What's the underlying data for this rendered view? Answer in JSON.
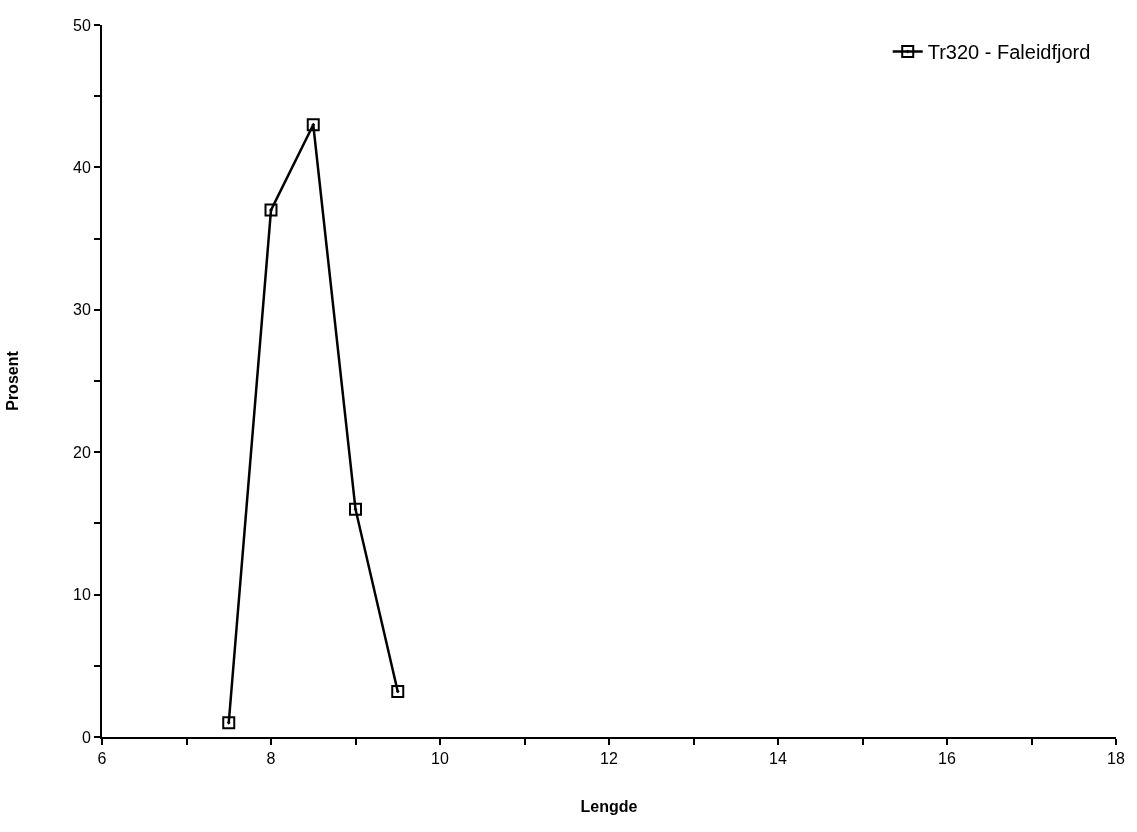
{
  "chart_data": {
    "type": "line",
    "xlabel": "Lengde",
    "ylabel": "Prosent",
    "x": [
      7.5,
      8,
      8.5,
      9,
      9.5
    ],
    "series": [
      {
        "name": "Tr320 - Faleidfjord",
        "color": "#000000",
        "values": [
          1,
          37,
          43,
          16,
          3.2
        ]
      }
    ],
    "xlim": [
      6,
      18
    ],
    "xticks": [
      6,
      {
        "value": 7,
        "label": null
      },
      8,
      {
        "value": 9,
        "label": null
      },
      10,
      {
        "value": 11,
        "label": null
      },
      12,
      {
        "value": 13,
        "label": null
      },
      14,
      {
        "value": 15,
        "label": null
      },
      16,
      {
        "value": 17,
        "label": null
      },
      18
    ],
    "ylim": [
      0,
      50
    ],
    "yticks": [
      0,
      {
        "value": 5,
        "label": null
      },
      10,
      {
        "value": 15,
        "label": null
      },
      20,
      {
        "value": 25,
        "label": null
      },
      30,
      {
        "value": 35,
        "label": null
      },
      40,
      {
        "value": 45,
        "label": null
      },
      50
    ],
    "legend": "top right",
    "marker": "square",
    "line_style": "solid"
  }
}
